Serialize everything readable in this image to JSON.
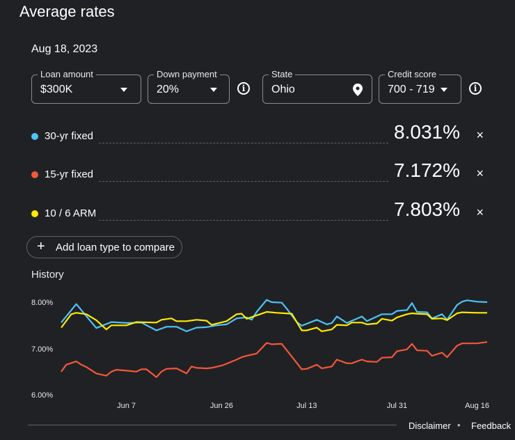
{
  "title": "Average rates",
  "date": "Aug 18, 2023",
  "filters": {
    "loan_amount": {
      "label": "Loan amount",
      "value": "$300K"
    },
    "down_payment": {
      "label": "Down payment",
      "value": "20%"
    },
    "state": {
      "label": "State",
      "value": "Ohio"
    },
    "credit_score": {
      "label": "Credit score",
      "value": "700 - 719"
    },
    "info_icon": "i"
  },
  "loans": [
    {
      "name": "30-yr fixed",
      "rate": "8.031%",
      "color": "#4fc3f7"
    },
    {
      "name": "15-yr fixed",
      "rate": "7.172%",
      "color": "#f4573a"
    },
    {
      "name": "10 / 6 ARM",
      "rate": "7.803%",
      "color": "#ffeb00"
    }
  ],
  "close_icon": "×",
  "add_button": {
    "icon": "+",
    "label": "Add loan type to compare"
  },
  "history_label": "History",
  "chart_data": {
    "type": "line",
    "xlim": [
      "2023-05-25",
      "2023-08-18"
    ],
    "ylim": [
      6.0,
      8.2
    ],
    "y_ticks": [
      "8.00%",
      "7.00%",
      "6.00%"
    ],
    "y_tick_values": [
      8,
      7,
      6
    ],
    "x_ticks": [
      "Jun 7",
      "Jun 26",
      "Jul 13",
      "Jul 31",
      "Aug 16"
    ],
    "x_tick_dates": [
      "2023-06-07",
      "2023-06-26",
      "2023-07-13",
      "2023-07-31",
      "2023-08-16"
    ],
    "grid": false,
    "series": [
      {
        "name": "30-yr fixed",
        "color": "#4fc3f7",
        "points": [
          [
            "2023-05-25",
            7.59
          ],
          [
            "2023-05-28",
            7.99
          ],
          [
            "2023-06-01",
            7.47
          ],
          [
            "2023-06-04",
            7.6
          ],
          [
            "2023-06-07",
            7.58
          ],
          [
            "2023-06-10",
            7.59
          ],
          [
            "2023-06-13",
            7.42
          ],
          [
            "2023-06-15",
            7.5
          ],
          [
            "2023-06-17",
            7.5
          ],
          [
            "2023-06-19",
            7.4
          ],
          [
            "2023-06-21",
            7.48
          ],
          [
            "2023-06-23",
            7.49
          ],
          [
            "2023-06-25",
            7.53
          ],
          [
            "2023-06-27",
            7.55
          ],
          [
            "2023-06-29",
            7.68
          ],
          [
            "2023-07-01",
            7.7
          ],
          [
            "2023-07-02",
            7.65
          ],
          [
            "2023-07-03",
            7.82
          ],
          [
            "2023-07-05",
            8.08
          ],
          [
            "2023-07-06",
            8.03
          ],
          [
            "2023-07-08",
            8.02
          ],
          [
            "2023-07-09",
            7.89
          ],
          [
            "2023-07-11",
            7.6
          ],
          [
            "2023-07-12",
            7.52
          ],
          [
            "2023-07-15",
            7.65
          ],
          [
            "2023-07-17",
            7.55
          ],
          [
            "2023-07-18",
            7.58
          ],
          [
            "2023-07-19",
            7.72
          ],
          [
            "2023-07-21",
            7.58
          ],
          [
            "2023-07-24",
            7.72
          ],
          [
            "2023-07-25",
            7.62
          ],
          [
            "2023-07-28",
            7.77
          ],
          [
            "2023-07-30",
            7.77
          ],
          [
            "2023-07-31",
            7.84
          ],
          [
            "2023-08-02",
            7.86
          ],
          [
            "2023-08-03",
            8.01
          ],
          [
            "2023-08-04",
            7.82
          ],
          [
            "2023-08-06",
            7.81
          ],
          [
            "2023-08-07",
            7.68
          ],
          [
            "2023-08-09",
            7.77
          ],
          [
            "2023-08-10",
            7.65
          ],
          [
            "2023-08-12",
            7.97
          ],
          [
            "2023-08-13",
            8.04
          ],
          [
            "2023-08-14",
            8.07
          ],
          [
            "2023-08-16",
            8.04
          ],
          [
            "2023-08-18",
            8.03
          ]
        ]
      },
      {
        "name": "15-yr fixed",
        "color": "#f4573a",
        "points": [
          [
            "2023-05-25",
            6.53
          ],
          [
            "2023-05-26",
            6.68
          ],
          [
            "2023-05-28",
            6.75
          ],
          [
            "2023-05-29",
            6.68
          ],
          [
            "2023-05-30",
            6.63
          ],
          [
            "2023-06-01",
            6.49
          ],
          [
            "2023-06-03",
            6.44
          ],
          [
            "2023-06-04",
            6.53
          ],
          [
            "2023-06-05",
            6.57
          ],
          [
            "2023-06-07",
            6.55
          ],
          [
            "2023-06-09",
            6.53
          ],
          [
            "2023-06-10",
            6.58
          ],
          [
            "2023-06-11",
            6.58
          ],
          [
            "2023-06-13",
            6.41
          ],
          [
            "2023-06-14",
            6.53
          ],
          [
            "2023-06-15",
            6.59
          ],
          [
            "2023-06-17",
            6.6
          ],
          [
            "2023-06-19",
            6.49
          ],
          [
            "2023-06-20",
            6.64
          ],
          [
            "2023-06-21",
            6.61
          ],
          [
            "2023-06-23",
            6.6
          ],
          [
            "2023-06-24",
            6.61
          ],
          [
            "2023-06-26",
            6.66
          ],
          [
            "2023-06-27",
            6.7
          ],
          [
            "2023-06-29",
            6.79
          ],
          [
            "2023-06-30",
            6.84
          ],
          [
            "2023-07-01",
            6.87
          ],
          [
            "2023-07-03",
            6.92
          ],
          [
            "2023-07-05",
            7.15
          ],
          [
            "2023-07-06",
            7.12
          ],
          [
            "2023-07-08",
            7.13
          ],
          [
            "2023-07-12",
            6.58
          ],
          [
            "2023-07-13",
            6.59
          ],
          [
            "2023-07-15",
            6.68
          ],
          [
            "2023-07-16",
            6.6
          ],
          [
            "2023-07-18",
            6.64
          ],
          [
            "2023-07-19",
            6.79
          ],
          [
            "2023-07-21",
            6.71
          ],
          [
            "2023-07-22",
            6.71
          ],
          [
            "2023-07-24",
            6.79
          ],
          [
            "2023-07-25",
            6.75
          ],
          [
            "2023-07-27",
            6.74
          ],
          [
            "2023-07-28",
            6.83
          ],
          [
            "2023-07-30",
            6.84
          ],
          [
            "2023-07-31",
            6.97
          ],
          [
            "2023-08-02",
            7.01
          ],
          [
            "2023-08-03",
            7.13
          ],
          [
            "2023-08-04",
            6.99
          ],
          [
            "2023-08-06",
            6.98
          ],
          [
            "2023-08-07",
            6.87
          ],
          [
            "2023-08-09",
            6.94
          ],
          [
            "2023-08-10",
            6.84
          ],
          [
            "2023-08-12",
            7.09
          ],
          [
            "2023-08-13",
            7.14
          ],
          [
            "2023-08-16",
            7.14
          ],
          [
            "2023-08-18",
            7.17
          ]
        ]
      },
      {
        "name": "10 / 6 ARM",
        "color": "#ffeb00",
        "points": [
          [
            "2023-05-25",
            7.48
          ],
          [
            "2023-05-27",
            7.77
          ],
          [
            "2023-05-28",
            7.8
          ],
          [
            "2023-05-30",
            7.77
          ],
          [
            "2023-06-01",
            7.64
          ],
          [
            "2023-06-03",
            7.44
          ],
          [
            "2023-06-04",
            7.53
          ],
          [
            "2023-06-07",
            7.53
          ],
          [
            "2023-06-09",
            7.6
          ],
          [
            "2023-06-13",
            7.59
          ],
          [
            "2023-06-14",
            7.65
          ],
          [
            "2023-06-16",
            7.68
          ],
          [
            "2023-06-17",
            7.62
          ],
          [
            "2023-06-19",
            7.62
          ],
          [
            "2023-06-21",
            7.65
          ],
          [
            "2023-06-23",
            7.63
          ],
          [
            "2023-06-24",
            7.54
          ],
          [
            "2023-06-27",
            7.62
          ],
          [
            "2023-06-29",
            7.77
          ],
          [
            "2023-06-30",
            7.78
          ],
          [
            "2023-07-01",
            7.67
          ],
          [
            "2023-07-05",
            7.82
          ],
          [
            "2023-07-07",
            7.8
          ],
          [
            "2023-07-10",
            7.78
          ],
          [
            "2023-07-12",
            7.42
          ],
          [
            "2023-07-13",
            7.42
          ],
          [
            "2023-07-15",
            7.48
          ],
          [
            "2023-07-16",
            7.4
          ],
          [
            "2023-07-18",
            7.44
          ],
          [
            "2023-07-19",
            7.54
          ],
          [
            "2023-07-21",
            7.53
          ],
          [
            "2023-07-22",
            7.59
          ],
          [
            "2023-07-24",
            7.59
          ],
          [
            "2023-07-25",
            7.55
          ],
          [
            "2023-07-27",
            7.57
          ],
          [
            "2023-07-28",
            7.67
          ],
          [
            "2023-07-30",
            7.63
          ],
          [
            "2023-07-31",
            7.7
          ],
          [
            "2023-08-02",
            7.77
          ],
          [
            "2023-08-03",
            7.79
          ],
          [
            "2023-08-04",
            7.78
          ],
          [
            "2023-08-06",
            7.77
          ],
          [
            "2023-08-07",
            7.67
          ],
          [
            "2023-08-09",
            7.68
          ],
          [
            "2023-08-10",
            7.64
          ],
          [
            "2023-08-12",
            7.79
          ],
          [
            "2023-08-13",
            7.81
          ],
          [
            "2023-08-16",
            7.8
          ],
          [
            "2023-08-18",
            7.8
          ]
        ]
      }
    ]
  },
  "footer": {
    "disclaimer": "Disclaimer",
    "separator": "•",
    "feedback": "Feedback"
  }
}
